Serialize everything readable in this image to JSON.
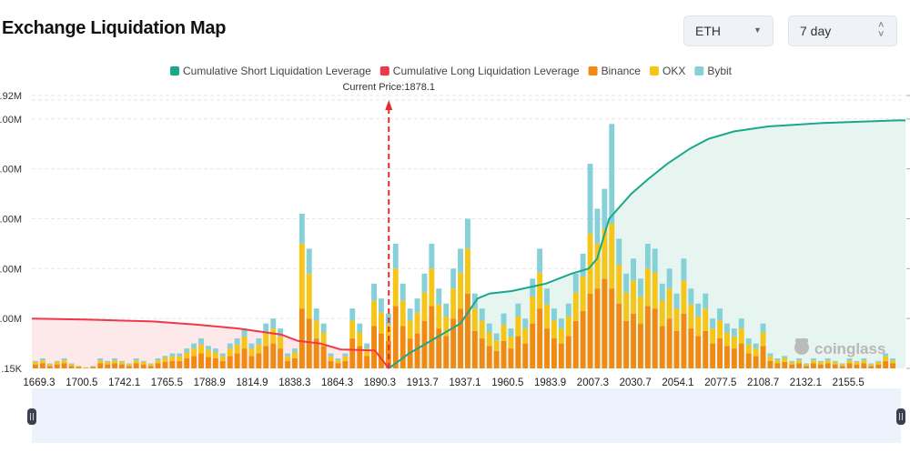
{
  "header": {
    "title": "Exchange Liquidation Map",
    "symbol_select": "ETH",
    "period_select": "7 day"
  },
  "watermark": "coinglass",
  "chart_data": {
    "type": "bar",
    "legend_position": "top",
    "legend": [
      {
        "name": "Cumulative Short Liquidation Leverage",
        "color": "#1aa88a"
      },
      {
        "name": "Cumulative Long Liquidation Leverage",
        "color": "#f0384a"
      },
      {
        "name": "Binance",
        "color": "#f08a12"
      },
      {
        "name": "OKX",
        "color": "#f5c518"
      },
      {
        "name": "Bybit",
        "color": "#86d0d8"
      }
    ],
    "current_price_label": "Current Price:1878.1",
    "current_price": 1878.1,
    "xlim": [
      1669.3,
      2175
    ],
    "x_tick_labels": [
      "1669.3",
      "1700.5",
      "1742.1",
      "1765.5",
      "1788.9",
      "1814.9",
      "1838.3",
      "1864.3",
      "1890.3",
      "1913.7",
      "1937.1",
      "1960.5",
      "1983.9",
      "2007.3",
      "2030.7",
      "2054.1",
      "2077.5",
      "2108.7",
      "2132.1",
      "2155.5"
    ],
    "y_tick_labels_visible": [
      ".15K",
      ".00M",
      ".00M",
      ".00M",
      ".00M",
      ".00M",
      ".92M"
    ],
    "ylim": [
      0,
      5.47
    ],
    "grid": true,
    "bars": {
      "binance": [
        0.08,
        0.1,
        0.05,
        0.08,
        0.1,
        0.05,
        0.03,
        0.01,
        0.03,
        0.1,
        0.08,
        0.1,
        0.08,
        0.05,
        0.1,
        0.08,
        0.05,
        0.1,
        0.13,
        0.15,
        0.15,
        0.2,
        0.25,
        0.3,
        0.23,
        0.2,
        0.15,
        0.25,
        0.3,
        0.4,
        0.25,
        0.3,
        0.45,
        0.5,
        0.4,
        0.15,
        0.2,
        1.2,
        1.0,
        0.6,
        0.45,
        0.15,
        0.1,
        0.15,
        0.6,
        0.45,
        0.25,
        0.85,
        0.7,
        0.55,
        1.25,
        0.85,
        0.6,
        0.7,
        0.95,
        1.25,
        0.8,
        0.65,
        1.0,
        1.2,
        1.5,
        0.75,
        0.6,
        0.45,
        0.35,
        0.55,
        0.4,
        0.65,
        0.5,
        0.9,
        1.2,
        0.8,
        0.6,
        0.5,
        0.65,
        0.95,
        1.15,
        1.5,
        1.6,
        1.8,
        1.6,
        1.3,
        0.95,
        1.1,
        0.9,
        1.25,
        1.2,
        0.85,
        1.0,
        0.75,
        1.1,
        0.8,
        0.65,
        0.75,
        0.5,
        0.6,
        0.45,
        0.4,
        0.5,
        0.3,
        0.25,
        0.45,
        0.15,
        0.1,
        0.13,
        0.08,
        0.1,
        0.05,
        0.1,
        0.08,
        0.1,
        0.08,
        0.05,
        0.1,
        0.08,
        0.1,
        0.05,
        0.08,
        0.15,
        0.1
      ],
      "okx": [
        0.05,
        0.06,
        0.03,
        0.05,
        0.06,
        0.03,
        0.02,
        0.01,
        0.01,
        0.06,
        0.05,
        0.06,
        0.05,
        0.03,
        0.06,
        0.05,
        0.03,
        0.06,
        0.08,
        0.09,
        0.09,
        0.12,
        0.15,
        0.18,
        0.14,
        0.12,
        0.09,
        0.15,
        0.18,
        0.24,
        0.15,
        0.18,
        0.27,
        0.3,
        0.24,
        0.09,
        0.12,
        1.3,
        0.9,
        0.36,
        0.27,
        0.09,
        0.06,
        0.09,
        0.36,
        0.27,
        0.15,
        0.51,
        0.42,
        0.33,
        0.75,
        0.51,
        0.36,
        0.42,
        0.57,
        0.75,
        0.48,
        0.39,
        0.6,
        0.72,
        0.9,
        0.45,
        0.36,
        0.27,
        0.21,
        0.33,
        0.24,
        0.39,
        0.3,
        0.54,
        0.72,
        0.48,
        0.36,
        0.3,
        0.39,
        0.57,
        0.69,
        1.2,
        0.9,
        1.0,
        1.3,
        0.78,
        0.57,
        0.66,
        0.54,
        0.75,
        0.72,
        0.51,
        0.6,
        0.45,
        0.66,
        0.48,
        0.39,
        0.45,
        0.3,
        0.36,
        0.27,
        0.24,
        0.3,
        0.18,
        0.15,
        0.27,
        0.09,
        0.06,
        0.08,
        0.05,
        0.06,
        0.03,
        0.06,
        0.05,
        0.06,
        0.05,
        0.03,
        0.06,
        0.05,
        0.06,
        0.03,
        0.05,
        0.09,
        0.06
      ],
      "bybit": [
        0.02,
        0.04,
        0.02,
        0.02,
        0.04,
        0.02,
        0,
        0,
        0.01,
        0.04,
        0.02,
        0.04,
        0.02,
        0.02,
        0.04,
        0.02,
        0.02,
        0.04,
        0.04,
        0.06,
        0.06,
        0.08,
        0.1,
        0.12,
        0.08,
        0.08,
        0.06,
        0.1,
        0.12,
        0.16,
        0.1,
        0.12,
        0.18,
        0.2,
        0.16,
        0.06,
        0.08,
        0.6,
        0.5,
        0.24,
        0.18,
        0.06,
        0.04,
        0.06,
        0.24,
        0.18,
        0.1,
        0.34,
        0.28,
        0.22,
        0.5,
        0.34,
        0.24,
        0.28,
        0.38,
        0.5,
        0.32,
        0.26,
        0.4,
        0.48,
        0.6,
        0.3,
        0.24,
        0.18,
        0.14,
        0.22,
        0.16,
        0.26,
        0.2,
        0.36,
        0.48,
        0.32,
        0.24,
        0.2,
        0.26,
        0.38,
        0.46,
        1.4,
        0.7,
        0.8,
        2.0,
        0.52,
        0.38,
        0.44,
        0.36,
        0.5,
        0.48,
        0.34,
        0.4,
        0.3,
        0.44,
        0.32,
        0.26,
        0.3,
        0.2,
        0.24,
        0.18,
        0.16,
        0.2,
        0.12,
        0.1,
        0.18,
        0.06,
        0.04,
        0.04,
        0.02,
        0.04,
        0.02,
        0.04,
        0.02,
        0.04,
        0.02,
        0.02,
        0.04,
        0.02,
        0.04,
        0.02,
        0.02,
        0.06,
        0.04
      ]
    },
    "cumulative_long": [
      [
        1669.3,
        1.0
      ],
      [
        1700,
        0.98
      ],
      [
        1740,
        0.94
      ],
      [
        1765,
        0.88
      ],
      [
        1790,
        0.8
      ],
      [
        1815,
        0.68
      ],
      [
        1825,
        0.55
      ],
      [
        1838,
        0.5
      ],
      [
        1850,
        0.38
      ],
      [
        1870,
        0.36
      ],
      [
        1878.1,
        0
      ]
    ],
    "cumulative_short": [
      [
        1878.1,
        0
      ],
      [
        1890,
        0.3
      ],
      [
        1905,
        0.6
      ],
      [
        1920,
        0.9
      ],
      [
        1930,
        1.4
      ],
      [
        1937,
        1.5
      ],
      [
        1950,
        1.55
      ],
      [
        1970,
        1.7
      ],
      [
        1985,
        1.9
      ],
      [
        1995,
        2.0
      ],
      [
        2000,
        2.2
      ],
      [
        2007,
        3.0
      ],
      [
        2020,
        3.5
      ],
      [
        2030,
        3.8
      ],
      [
        2041,
        4.1
      ],
      [
        2054,
        4.4
      ],
      [
        2065,
        4.6
      ],
      [
        2080,
        4.75
      ],
      [
        2100,
        4.85
      ],
      [
        2132,
        4.92
      ],
      [
        2175,
        4.97
      ]
    ]
  }
}
